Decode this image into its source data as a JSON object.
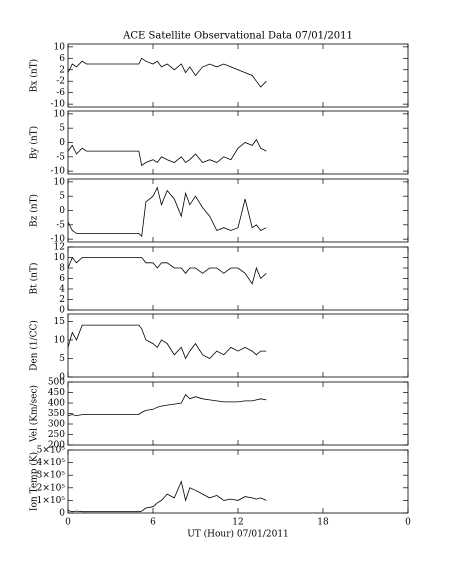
{
  "title": "ACE Satellite Observational Data  07/01/2011",
  "x_axis": {
    "xlabel": "UT (Hour)  07/01/2011",
    "xlim": [
      0,
      24
    ],
    "xticks": [
      0,
      6,
      12,
      18,
      {
        "value": 24,
        "label": "0"
      }
    ]
  },
  "chart_data": [
    {
      "type": "line",
      "ylabel": "Bx (nT)",
      "color": "#000000",
      "ylim": [
        -11,
        11
      ],
      "yticks": [
        10,
        6,
        2,
        -2,
        -6,
        -10
      ],
      "x": [
        0,
        0.3,
        0.6,
        1,
        1.3,
        1.5,
        5,
        5.2,
        5.5,
        6,
        6.3,
        6.6,
        7,
        7.5,
        8,
        8.3,
        8.6,
        9,
        9.5,
        10,
        10.5,
        11,
        11.5,
        12,
        12.5,
        13,
        13.3,
        13.6,
        14
      ],
      "values": [
        1,
        4,
        3,
        5,
        4,
        4,
        4,
        6,
        5,
        4,
        5,
        3,
        4,
        2,
        4,
        1,
        3,
        0,
        3,
        4,
        3,
        4,
        3,
        2,
        1,
        0,
        -2,
        -4,
        -2
      ]
    },
    {
      "type": "line",
      "ylabel": "By (nT)",
      "color": "#000000",
      "ylim": [
        -11,
        11
      ],
      "yticks": [
        10,
        5,
        0,
        -5,
        -10
      ],
      "x": [
        0,
        0.3,
        0.6,
        1,
        1.3,
        1.5,
        5,
        5.2,
        5.5,
        6,
        6.3,
        6.6,
        7,
        7.5,
        8,
        8.3,
        8.6,
        9,
        9.5,
        10,
        10.5,
        11,
        11.5,
        12,
        12.5,
        13,
        13.3,
        13.6,
        14
      ],
      "values": [
        -3,
        -1,
        -4,
        -2,
        -3,
        -3,
        -3,
        -8,
        -7,
        -6,
        -7,
        -5,
        -6,
        -7,
        -5,
        -7,
        -6,
        -4,
        -7,
        -6,
        -7,
        -5,
        -6,
        -2,
        0,
        -1,
        1,
        -2,
        -3
      ]
    },
    {
      "type": "line",
      "ylabel": "Bz (nT)",
      "color": "#000000",
      "ylim": [
        -11,
        11
      ],
      "yticks": [
        10,
        5,
        0,
        -5,
        -10
      ],
      "x": [
        0,
        0.3,
        0.6,
        1,
        1.3,
        1.5,
        5,
        5.2,
        5.5,
        6,
        6.3,
        6.6,
        7,
        7.5,
        8,
        8.3,
        8.6,
        9,
        9.5,
        10,
        10.5,
        11,
        11.5,
        12,
        12.5,
        13,
        13.3,
        13.6,
        14
      ],
      "values": [
        -4,
        -7,
        -8,
        -8,
        -8,
        -8,
        -8,
        -9,
        3,
        5,
        8,
        2,
        7,
        4,
        -2,
        6,
        2,
        5,
        1,
        -2,
        -7,
        -6,
        -7,
        -6,
        4,
        -6,
        -5,
        -7,
        -6
      ]
    },
    {
      "type": "line",
      "ylabel": "Bt (nT)",
      "color": "#000000",
      "ylim": [
        0,
        12
      ],
      "yticks": [
        12,
        10,
        8,
        6,
        4,
        2,
        0
      ],
      "x": [
        0,
        0.3,
        0.6,
        1,
        1.3,
        1.5,
        5,
        5.2,
        5.5,
        6,
        6.3,
        6.6,
        7,
        7.5,
        8,
        8.3,
        8.6,
        9,
        9.5,
        10,
        10.5,
        11,
        11.5,
        12,
        12.5,
        13,
        13.3,
        13.6,
        14
      ],
      "values": [
        8,
        10,
        9,
        10,
        10,
        10,
        10,
        10,
        9,
        9,
        8,
        9,
        9,
        8,
        8,
        7,
        8,
        8,
        7,
        8,
        8,
        7,
        8,
        8,
        7,
        5,
        8,
        6,
        7
      ]
    },
    {
      "type": "line",
      "ylabel": "Den (1/CC)",
      "color": "#000000",
      "ylim": [
        0,
        17
      ],
      "yticks": [
        15,
        10,
        5,
        0
      ],
      "x": [
        0,
        0.3,
        0.6,
        1,
        1.3,
        1.5,
        5,
        5.2,
        5.5,
        6,
        6.3,
        6.6,
        7,
        7.5,
        8,
        8.3,
        8.6,
        9,
        9.5,
        10,
        10.5,
        11,
        11.5,
        12,
        12.5,
        13,
        13.3,
        13.6,
        14
      ],
      "values": [
        8,
        12,
        10,
        14,
        14,
        14,
        14,
        13,
        10,
        9,
        8,
        10,
        9,
        6,
        8,
        5,
        7,
        9,
        6,
        5,
        7,
        6,
        8,
        7,
        8,
        7,
        6,
        7,
        7
      ]
    },
    {
      "type": "line",
      "ylabel": "Vel (Km/sec)",
      "color": "#000000",
      "ylim": [
        200,
        500
      ],
      "yticks": [
        500,
        450,
        400,
        350,
        300,
        250,
        200
      ],
      "x": [
        0,
        0.3,
        0.6,
        1,
        1.3,
        1.5,
        5,
        5.2,
        5.5,
        6,
        6.3,
        6.6,
        7,
        7.5,
        8,
        8.3,
        8.6,
        9,
        9.5,
        10,
        10.5,
        11,
        11.5,
        12,
        12.5,
        13,
        13.3,
        13.6,
        14
      ],
      "values": [
        340,
        345,
        340,
        345,
        345,
        345,
        345,
        355,
        365,
        370,
        380,
        385,
        390,
        395,
        400,
        440,
        420,
        430,
        420,
        415,
        410,
        405,
        405,
        405,
        410,
        410,
        415,
        420,
        415
      ]
    },
    {
      "type": "line",
      "ylabel": "Ion Temp (K)",
      "color": "#000000",
      "ylim": [
        0,
        500000
      ],
      "yticks": [
        {
          "value": 500000,
          "label": "5×10⁵"
        },
        {
          "value": 400000,
          "label": "4×10⁵"
        },
        {
          "value": 300000,
          "label": "3×10⁵"
        },
        {
          "value": 200000,
          "label": "2×10⁵"
        },
        {
          "value": 100000,
          "label": "1×10⁵"
        },
        0
      ],
      "x": [
        0,
        0.3,
        0.6,
        1,
        1.3,
        1.5,
        5,
        5.2,
        5.5,
        6,
        6.3,
        6.6,
        7,
        7.5,
        8,
        8.3,
        8.6,
        9,
        9.5,
        10,
        10.5,
        11,
        11.5,
        12,
        12.5,
        13,
        13.3,
        13.6,
        14
      ],
      "values": [
        20000,
        10000,
        15000,
        10000,
        10000,
        10000,
        10000,
        15000,
        40000,
        50000,
        80000,
        100000,
        150000,
        120000,
        250000,
        100000,
        200000,
        180000,
        150000,
        120000,
        140000,
        100000,
        110000,
        100000,
        130000,
        120000,
        110000,
        120000,
        100000
      ]
    }
  ]
}
